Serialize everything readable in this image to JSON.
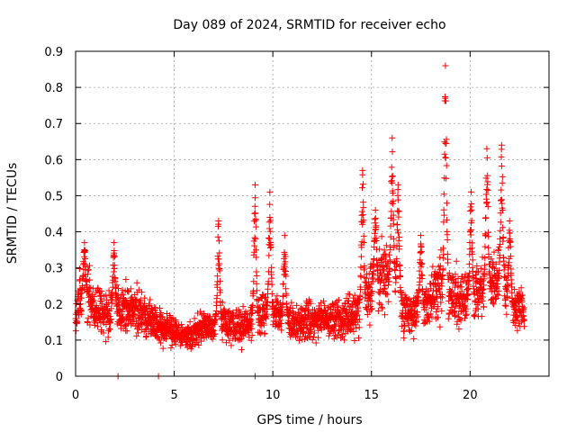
{
  "chart_data": {
    "type": "scatter",
    "title": "Day 089 of 2024, SRMTID for receiver echo",
    "xlabel": "GPS time / hours",
    "ylabel": "SRMTID / TECUs",
    "xlim": [
      0,
      24
    ],
    "ylim": [
      0,
      0.9
    ],
    "x_ticks": [
      0,
      5,
      10,
      15,
      20
    ],
    "x_tick_labels": [
      "0",
      "5",
      "10",
      "15",
      "20"
    ],
    "y_ticks": [
      0,
      0.1,
      0.2,
      0.3,
      0.4,
      0.5,
      0.6,
      0.7,
      0.8,
      0.9
    ],
    "y_tick_labels": [
      "0",
      "0.1",
      "0.2",
      "0.3",
      "0.4",
      "0.5",
      "0.6",
      "0.7",
      "0.8",
      "0.9"
    ],
    "grid": true,
    "marker": "+",
    "color": "#ff0000",
    "series": [
      {
        "name": "SRMTID",
        "x_range": [
          0,
          22.75
        ],
        "samples_per_hour": 120,
        "baseline_points": [
          [
            0.0,
            0.17
          ],
          [
            0.3,
            0.23
          ],
          [
            0.6,
            0.22
          ],
          [
            1.0,
            0.19
          ],
          [
            1.5,
            0.17
          ],
          [
            2.0,
            0.18
          ],
          [
            2.5,
            0.19
          ],
          [
            3.0,
            0.18
          ],
          [
            3.5,
            0.17
          ],
          [
            4.0,
            0.15
          ],
          [
            4.5,
            0.13
          ],
          [
            5.0,
            0.12
          ],
          [
            5.5,
            0.11
          ],
          [
            6.0,
            0.12
          ],
          [
            6.5,
            0.14
          ],
          [
            7.0,
            0.14
          ],
          [
            7.5,
            0.15
          ],
          [
            8.0,
            0.14
          ],
          [
            8.5,
            0.14
          ],
          [
            9.0,
            0.15
          ],
          [
            9.5,
            0.18
          ],
          [
            10.0,
            0.17
          ],
          [
            10.5,
            0.16
          ],
          [
            11.0,
            0.15
          ],
          [
            11.5,
            0.15
          ],
          [
            12.0,
            0.15
          ],
          [
            12.5,
            0.16
          ],
          [
            13.0,
            0.16
          ],
          [
            13.5,
            0.16
          ],
          [
            14.0,
            0.17
          ],
          [
            14.5,
            0.19
          ],
          [
            15.0,
            0.24
          ],
          [
            15.5,
            0.27
          ],
          [
            16.0,
            0.28
          ],
          [
            16.5,
            0.19
          ],
          [
            17.0,
            0.17
          ],
          [
            17.5,
            0.19
          ],
          [
            18.0,
            0.21
          ],
          [
            18.5,
            0.26
          ],
          [
            19.0,
            0.23
          ],
          [
            19.5,
            0.21
          ],
          [
            20.0,
            0.22
          ],
          [
            20.5,
            0.24
          ],
          [
            21.0,
            0.26
          ],
          [
            21.5,
            0.27
          ],
          [
            22.0,
            0.2
          ],
          [
            22.75,
            0.18
          ]
        ],
        "spikes": [
          {
            "x": 0.45,
            "y": 0.37
          },
          {
            "x": 1.95,
            "y": 0.37
          },
          {
            "x": 7.25,
            "y": 0.43
          },
          {
            "x": 9.1,
            "y": 0.53
          },
          {
            "x": 9.85,
            "y": 0.51
          },
          {
            "x": 10.6,
            "y": 0.39
          },
          {
            "x": 14.55,
            "y": 0.57
          },
          {
            "x": 15.2,
            "y": 0.46
          },
          {
            "x": 16.05,
            "y": 0.66
          },
          {
            "x": 16.35,
            "y": 0.53
          },
          {
            "x": 17.5,
            "y": 0.39
          },
          {
            "x": 18.75,
            "y": 0.86
          },
          {
            "x": 20.05,
            "y": 0.51
          },
          {
            "x": 20.85,
            "y": 0.63
          },
          {
            "x": 21.6,
            "y": 0.64
          },
          {
            "x": 22.0,
            "y": 0.43
          }
        ],
        "zero_points": [
          2.15,
          4.2,
          9.1
        ]
      }
    ]
  }
}
